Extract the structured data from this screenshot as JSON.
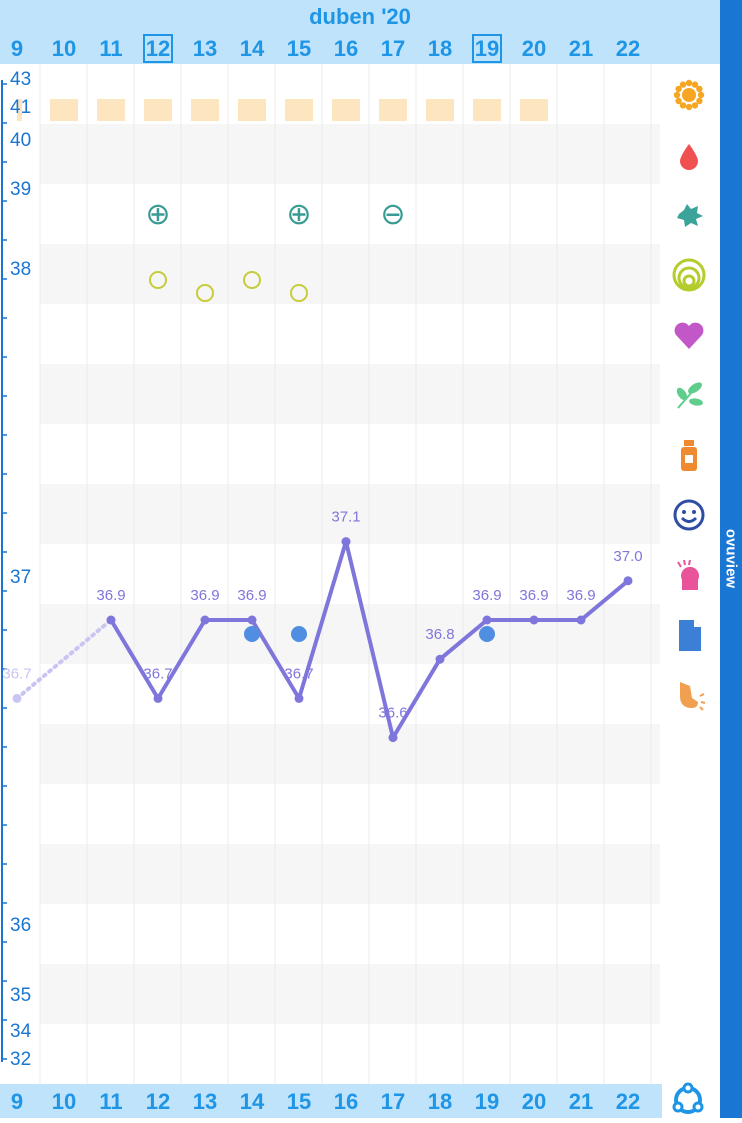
{
  "header": {
    "month": "duben '20"
  },
  "days": [
    {
      "label": "9",
      "today": false
    },
    {
      "label": "10",
      "today": false
    },
    {
      "label": "11",
      "today": false
    },
    {
      "label": "12",
      "today": true
    },
    {
      "label": "13",
      "today": false
    },
    {
      "label": "14",
      "today": false
    },
    {
      "label": "15",
      "today": false
    },
    {
      "label": "16",
      "today": false
    },
    {
      "label": "17",
      "today": false
    },
    {
      "label": "18",
      "today": false
    },
    {
      "label": "19",
      "today": true
    },
    {
      "label": "20",
      "today": false
    },
    {
      "label": "21",
      "today": false
    },
    {
      "label": "22",
      "today": false
    }
  ],
  "brand": "ovuview",
  "chart_data": {
    "type": "line",
    "y_tick_labels": [
      "43",
      "41",
      "40",
      "39",
      "38",
      "37",
      "36",
      "35",
      "34",
      "32"
    ],
    "temperature_series": {
      "x": [
        9,
        10,
        11,
        12,
        13,
        14,
        15,
        16,
        17,
        18,
        19,
        20,
        21,
        22
      ],
      "values": [
        36.7,
        null,
        36.9,
        36.7,
        36.9,
        36.9,
        36.7,
        37.1,
        36.6,
        36.8,
        36.9,
        36.9,
        36.9,
        37.0
      ],
      "labels": [
        "36.7",
        "",
        "36.9",
        "36.7",
        "36.9",
        "36.9",
        "36.7",
        "37.1",
        "36.6",
        "36.8",
        "36.9",
        "36.9",
        "36.9",
        "37.0"
      ],
      "color": "#7f76dc",
      "dotted_segment": [
        9,
        11
      ]
    },
    "test_results": [
      {
        "day": 12,
        "result": "positive",
        "symbol": "⊕"
      },
      {
        "day": 15,
        "result": "positive",
        "symbol": "⊕"
      },
      {
        "day": 17,
        "result": "negative",
        "symbol": "⊖"
      }
    ],
    "cervix_circles": [
      {
        "day": 12,
        "level": "high"
      },
      {
        "day": 13,
        "level": "low"
      },
      {
        "day": 14,
        "level": "high"
      },
      {
        "day": 15,
        "level": "low"
      }
    ],
    "intercourse_dots": [
      14,
      15,
      19
    ],
    "fertile_days": [
      9,
      10,
      11,
      12,
      13,
      14,
      15,
      16,
      17,
      18,
      19,
      20
    ],
    "colors": {
      "accent": "#1f95e6",
      "header": "#bfe3fb",
      "band": "#f6f6f6",
      "fertile": "#fde5c0",
      "test": "#3a9b94",
      "cervix": "#c6cc3a",
      "dot": "#4f8ee0",
      "strip": "#1976d2"
    }
  },
  "icons": [
    {
      "name": "sun-icon",
      "color": "#f6a623"
    },
    {
      "name": "blood-drop-icon",
      "color": "#f05050"
    },
    {
      "name": "splash-icon",
      "color": "#3ba39a"
    },
    {
      "name": "cervix-rings-icon",
      "color": "#b5cc2c"
    },
    {
      "name": "heart-icon",
      "color": "#c257c7"
    },
    {
      "name": "leaf-icon",
      "color": "#5fcd8b"
    },
    {
      "name": "pill-bottle-icon",
      "color": "#f08a30"
    },
    {
      "name": "smiley-icon",
      "color": "#2f4ea3"
    },
    {
      "name": "head-ache-icon",
      "color": "#e9539a"
    },
    {
      "name": "note-icon",
      "color": "#3b7fd6"
    },
    {
      "name": "breast-icon",
      "color": "#f0a050"
    }
  ]
}
